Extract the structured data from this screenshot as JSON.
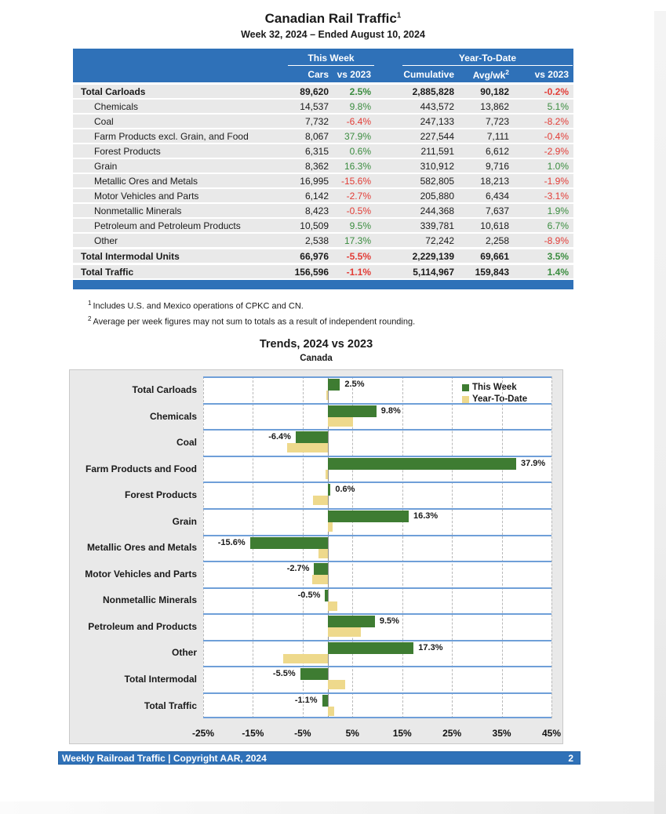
{
  "page": {
    "title": "Canadian Rail Traffic",
    "title_sup": "1",
    "subtitle": "Week 32, 2024 – Ended August 10, 2024",
    "footer": {
      "text": "Weekly Railroad Traffic | Copyright AAR, 2024",
      "page_number": "2"
    }
  },
  "colors": {
    "header_blue": "#2f71b8",
    "positive_green": "#3a8c3f",
    "negative_red": "#e23c36",
    "row_gray": "#e9e9e9",
    "band_line_blue": "#6f9fd8",
    "panel_gray": "#e9e9e9",
    "bar_green": "#3e7c32",
    "bar_yellow": "#eed98c"
  },
  "table": {
    "group_headers": [
      "This Week",
      "Year-To-Date"
    ],
    "column_headers": [
      "Cars",
      "vs 2023",
      "Cumulative",
      "Avg/wk",
      "vs 2023"
    ],
    "avg_wk_sup": "2",
    "rows": [
      {
        "label": "Total Carloads",
        "total": true,
        "cars": "89,620",
        "cars_vs": "2.5%",
        "cumulative": "2,885,828",
        "avg_wk": "90,182",
        "ytd_vs": "-0.2%"
      },
      {
        "label": "Chemicals",
        "total": false,
        "cars": "14,537",
        "cars_vs": "9.8%",
        "cumulative": "443,572",
        "avg_wk": "13,862",
        "ytd_vs": "5.1%"
      },
      {
        "label": "Coal",
        "total": false,
        "cars": "7,732",
        "cars_vs": "-6.4%",
        "cumulative": "247,133",
        "avg_wk": "7,723",
        "ytd_vs": "-8.2%"
      },
      {
        "label": "Farm Products excl. Grain, and Food",
        "total": false,
        "cars": "8,067",
        "cars_vs": "37.9%",
        "cumulative": "227,544",
        "avg_wk": "7,111",
        "ytd_vs": "-0.4%"
      },
      {
        "label": "Forest Products",
        "total": false,
        "cars": "6,315",
        "cars_vs": "0.6%",
        "cumulative": "211,591",
        "avg_wk": "6,612",
        "ytd_vs": "-2.9%"
      },
      {
        "label": "Grain",
        "total": false,
        "cars": "8,362",
        "cars_vs": "16.3%",
        "cumulative": "310,912",
        "avg_wk": "9,716",
        "ytd_vs": "1.0%"
      },
      {
        "label": "Metallic Ores and Metals",
        "total": false,
        "cars": "16,995",
        "cars_vs": "-15.6%",
        "cumulative": "582,805",
        "avg_wk": "18,213",
        "ytd_vs": "-1.9%"
      },
      {
        "label": "Motor Vehicles and Parts",
        "total": false,
        "cars": "6,142",
        "cars_vs": "-2.7%",
        "cumulative": "205,880",
        "avg_wk": "6,434",
        "ytd_vs": "-3.1%"
      },
      {
        "label": "Nonmetallic Minerals",
        "total": false,
        "cars": "8,423",
        "cars_vs": "-0.5%",
        "cumulative": "244,368",
        "avg_wk": "7,637",
        "ytd_vs": "1.9%"
      },
      {
        "label": "Petroleum and Petroleum Products",
        "total": false,
        "cars": "10,509",
        "cars_vs": "9.5%",
        "cumulative": "339,781",
        "avg_wk": "10,618",
        "ytd_vs": "6.7%"
      },
      {
        "label": "Other",
        "total": false,
        "cars": "2,538",
        "cars_vs": "17.3%",
        "cumulative": "72,242",
        "avg_wk": "2,258",
        "ytd_vs": "-8.9%"
      },
      {
        "label": "Total Intermodal Units",
        "total": true,
        "cars": "66,976",
        "cars_vs": "-5.5%",
        "cumulative": "2,229,139",
        "avg_wk": "69,661",
        "ytd_vs": "3.5%"
      },
      {
        "label": "Total Traffic",
        "total": true,
        "cars": "156,596",
        "cars_vs": "-1.1%",
        "cumulative": "5,114,967",
        "avg_wk": "159,843",
        "ytd_vs": "1.4%"
      }
    ]
  },
  "footnotes": [
    {
      "marker": "1",
      "text": "Includes U.S. and Mexico operations of CPKC and CN."
    },
    {
      "marker": "2",
      "text": "Average per week figures may not sum to totals as a result of independent rounding."
    }
  ],
  "chart_data": {
    "type": "bar",
    "orientation": "horizontal",
    "title": "Trends, 2024 vs 2023",
    "subtitle": "Canada",
    "categories": [
      "Total Carloads",
      "Chemicals",
      "Coal",
      "Farm Products and Food",
      "Forest Products",
      "Grain",
      "Metallic Ores and Metals",
      "Motor Vehicles and Parts",
      "Nonmetallic Minerals",
      "Petroleum and Products",
      "Other",
      "Total Intermodal",
      "Total Traffic"
    ],
    "series": [
      {
        "name": "This Week",
        "color": "#3e7c32",
        "values": [
          2.5,
          9.8,
          -6.4,
          37.9,
          0.6,
          16.3,
          -15.6,
          -2.7,
          -0.5,
          9.5,
          17.3,
          -5.5,
          -1.1
        ]
      },
      {
        "name": "Year-To-Date",
        "color": "#eed98c",
        "values": [
          -0.2,
          5.1,
          -8.2,
          -0.4,
          -2.9,
          1.0,
          -1.9,
          -3.1,
          1.9,
          6.7,
          -8.9,
          3.5,
          1.4
        ]
      }
    ],
    "data_labels": [
      "2.5%",
      "9.8%",
      "-6.4%",
      "37.9%",
      "0.6%",
      "16.3%",
      "-15.6%",
      "-2.7%",
      "-0.5%",
      "9.5%",
      "17.3%",
      "-5.5%",
      "-1.1%"
    ],
    "xlim": [
      -25,
      45
    ],
    "x_tick_values": [
      -25,
      -15,
      -5,
      5,
      15,
      25,
      35,
      45
    ],
    "x_ticks": [
      "-25%",
      "-15%",
      "-5%",
      "5%",
      "15%",
      "25%",
      "35%",
      "45%"
    ],
    "grid": "dashed vertical gridlines every 10%, solid zero line, blue horizontal band separators",
    "legend_position": "top-right"
  }
}
